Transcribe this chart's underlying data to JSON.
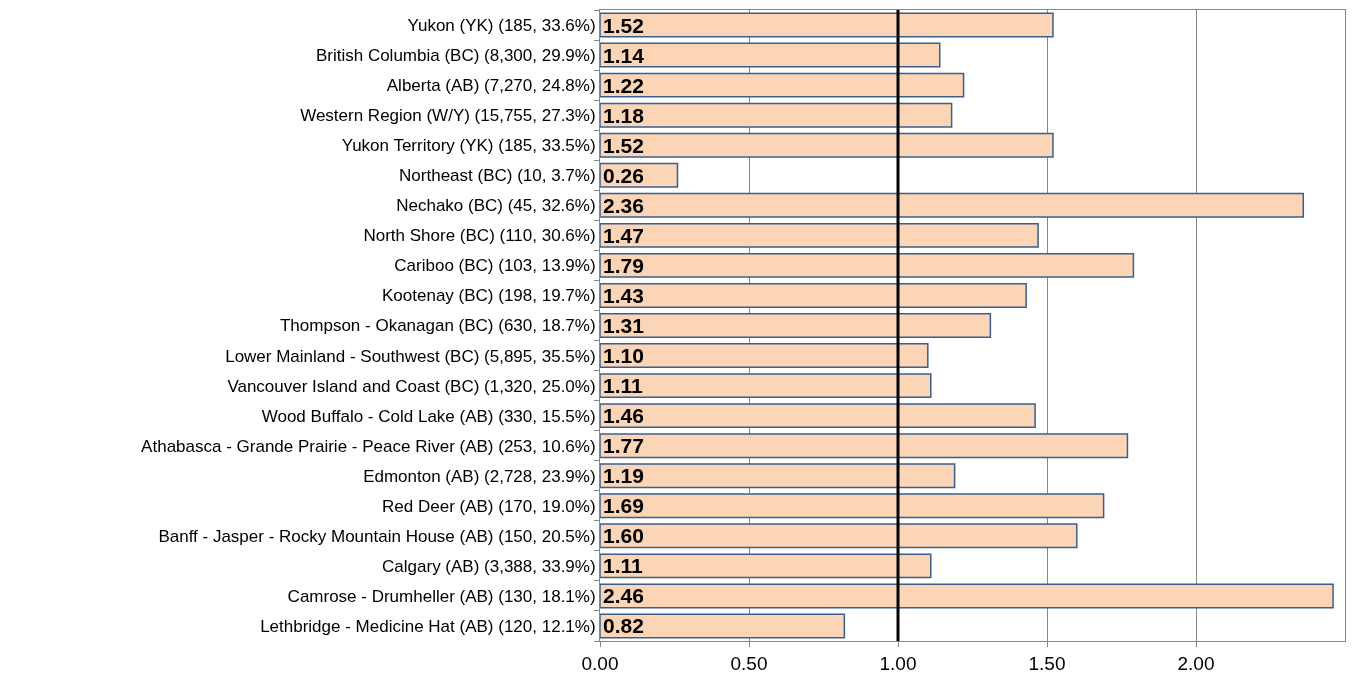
{
  "chart_data": {
    "type": "bar",
    "orientation": "horizontal",
    "categories": [
      "Yukon (YK) (185, 33.6%)",
      "British Columbia (BC) (8,300, 29.9%)",
      "Alberta (AB) (7,270, 24.8%)",
      "Western Region (W/Y) (15,755, 27.3%)",
      "Yukon Territory (YK) (185, 33.5%)",
      "Northeast (BC) (10, 3.7%)",
      "Nechako (BC) (45, 32.6%)",
      "North Shore (BC) (110, 30.6%)",
      "Cariboo (BC) (103, 13.9%)",
      "Kootenay (BC) (198, 19.7%)",
      "Thompson - Okanagan (BC) (630, 18.7%)",
      "Lower Mainland - Southwest (BC) (5,895, 35.5%)",
      "Vancouver Island and Coast (BC) (1,320, 25.0%)",
      "Wood Buffalo - Cold Lake (AB) (330, 15.5%)",
      "Athabasca - Grande Prairie - Peace River (AB) (253, 10.6%)",
      "Edmonton (AB) (2,728, 23.9%)",
      "Red Deer (AB) (170, 19.0%)",
      "Banff - Jasper - Rocky Mountain House (AB) (150, 20.5%)",
      "Calgary (AB) (3,388, 33.9%)",
      "Camrose - Drumheller (AB) (130, 18.1%)",
      "Lethbridge - Medicine Hat (AB) (120, 12.1%)"
    ],
    "values": [
      1.52,
      1.14,
      1.22,
      1.18,
      1.52,
      0.26,
      2.36,
      1.47,
      1.79,
      1.43,
      1.31,
      1.1,
      1.11,
      1.46,
      1.77,
      1.19,
      1.69,
      1.6,
      1.11,
      2.46,
      0.82
    ],
    "value_labels": [
      "1.52",
      "1.14",
      "1.22",
      "1.18",
      "1.52",
      "0.26",
      "2.36",
      "1.47",
      "1.79",
      "1.43",
      "1.31",
      "1.10",
      "1.11",
      "1.46",
      "1.77",
      "1.19",
      "1.69",
      "1.60",
      "1.11",
      "2.46",
      "0.82"
    ],
    "color": "#fbd5b5",
    "xlim": [
      0,
      2.5
    ],
    "xticks": [
      {
        "value": 0,
        "label": "0.00"
      },
      {
        "value": 0.5,
        "label": "0.50"
      },
      {
        "value": 1,
        "label": "1.00"
      },
      {
        "value": 1.5,
        "label": "1.50"
      },
      {
        "value": 2,
        "label": "2.00"
      }
    ],
    "grid": "x",
    "ref_lines": [
      {
        "axis": "x",
        "value": 1,
        "color": "#000000"
      }
    ]
  }
}
